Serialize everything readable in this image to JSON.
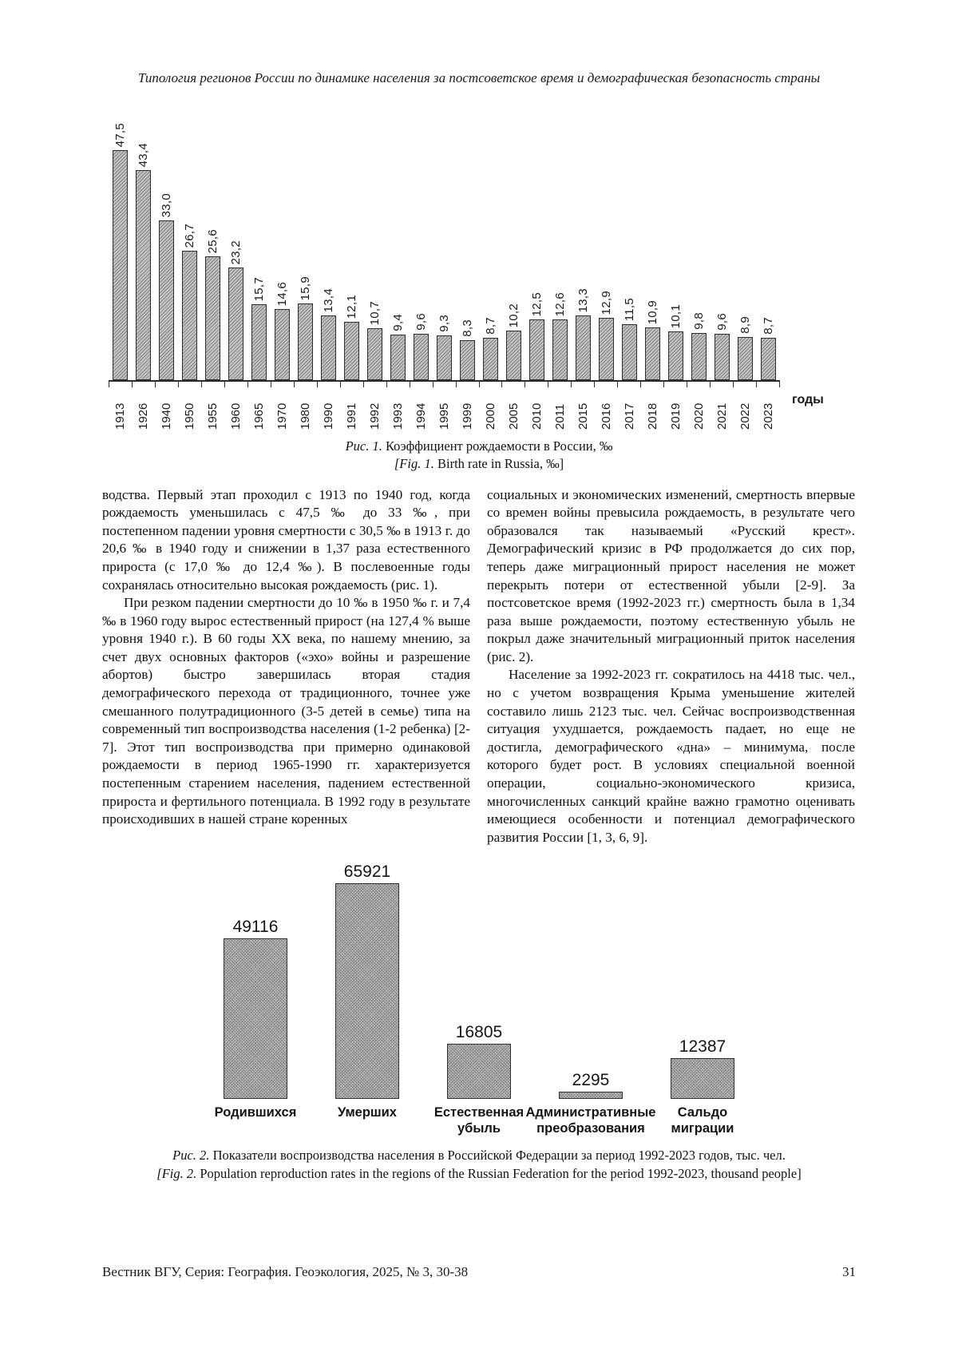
{
  "header": {
    "running_title": "Типология регионов России по динамике населения за постсоветское время и демографическая безопасность страны"
  },
  "chart_data": [
    {
      "type": "bar",
      "title": "Коэффициент рождаемости в России, ‰",
      "categories": [
        "1913",
        "1926",
        "1940",
        "1950",
        "1955",
        "1960",
        "1965",
        "1970",
        "1980",
        "1990",
        "1991",
        "1992",
        "1993",
        "1994",
        "1995",
        "1999",
        "2000",
        "2005",
        "2010",
        "2011",
        "2015",
        "2016",
        "2017",
        "2018",
        "2019",
        "2020",
        "2021",
        "2022",
        "2023"
      ],
      "values": [
        47.5,
        43.4,
        33.0,
        26.7,
        25.6,
        23.2,
        15.7,
        14.6,
        15.9,
        13.4,
        12.1,
        10.7,
        9.4,
        9.6,
        9.3,
        8.3,
        8.7,
        10.2,
        12.5,
        12.6,
        13.3,
        12.9,
        11.5,
        10.9,
        10.1,
        9.8,
        9.6,
        8.9,
        8.7
      ],
      "value_labels": [
        "47,5",
        "43,4",
        "33,0",
        "26,7",
        "25,6",
        "23,2",
        "15,7",
        "14,6",
        "15,9",
        "13,4",
        "12,1",
        "10,7",
        "9,4",
        "9,6",
        "9,3",
        "8,3",
        "8,7",
        "10,2",
        "12,5",
        "12,6",
        "13,3",
        "12,9",
        "11,5",
        "10,9",
        "10,1",
        "9,8",
        "9,6",
        "8,9",
        "8,7"
      ],
      "xlabel": "годы",
      "ylabel": "",
      "ylim": [
        0,
        50
      ],
      "grid": false,
      "legend_position": "none",
      "bar_label_rotation": 90,
      "tick_label_rotation": 90
    },
    {
      "type": "bar",
      "title": "Показатели воспроизводства населения в Российской Федерации за период 1992-2023 годов, тыс. чел.",
      "categories": [
        "Родившихся",
        "Умерших",
        "Естественная убыль",
        "Административные преобразования",
        "Сальдо миграции"
      ],
      "values": [
        49116,
        65921,
        16805,
        2295,
        12387
      ],
      "value_labels": [
        "49116",
        "65921",
        "16805",
        "2295",
        "12387"
      ],
      "xlabel": "",
      "ylabel": "",
      "ylim": [
        0,
        70000
      ],
      "grid": false,
      "legend_position": "none"
    }
  ],
  "fig1": {
    "ru_prefix": "Рис. 1.",
    "ru_text": " Коэффициент рождаемости в России, ‰",
    "en_prefix": "[Fig. 1.",
    "en_text": " Birth rate in Russia, ‰]"
  },
  "fig2": {
    "ru_prefix": "Рис. 2.",
    "ru_text": " Показатели воспроизводства населения в Российской Федерации за период 1992-2023 годов, тыс. чел.",
    "en_prefix": "[Fig. 2.",
    "en_text": " Population reproduction rates in the regions of the Russian Federation for the period 1992-2023, thousand people]"
  },
  "body": {
    "left": [
      "водства. Первый этап проходил с 1913 по 1940 год, когда рождаемость уменьшилась с 47,5 ‰ до 33 ‰, при постепенном падении уровня смертности с 30,5 ‰ в 1913 г. до 20,6 ‰ в 1940 году и снижении в 1,37 раза естественного прироста (с 17,0 ‰ до 12,4 ‰). В послевоенные годы сохранялась относительно высокая рождаемость (рис. 1).",
      "При резком падении смертности до 10 ‰ в 1950 ‰ г. и 7,4 ‰ в 1960 году вырос естественный прирост (на 127,4 % выше уровня 1940 г.). В 60 годы ХХ века, по нашему мнению, за счет двух основных факторов («эхо» войны и разрешение абортов) быстро завершилась вторая стадия демографического перехода от традиционного, точнее уже смешанного полутрадиционного (3-5 детей в семье) типа на современный тип воспроизводства населения (1-2 ребенка) [2-7]. Этот тип воспроизводства при примерно одинаковой рождаемости в период 1965-1990 гг. характеризуется постепенным старением населения, падением естественной прироста и фертильного потенциала. В 1992 году в результате происходивших в нашей стране коренных"
    ],
    "right": [
      "социальных и экономических изменений, смертность впервые со времен войны превысила рождаемость, в результате чего образовался так называемый «Русский крест». Демографический кризис в РФ продолжается до сих пор, теперь даже миграционный прирост населения не может перекрыть потери от естественной убыли [2-9]. За постсоветское время (1992-2023 гг.) смертность была в 1,34 раза выше рождаемости, поэтому естественную убыль не покрыл даже значительный миграционный приток населения (рис. 2).",
      "Население за 1992-2023 гг. сократилось на 4418 тыс. чел., но с учетом возвращения Крыма уменьшение жителей составило лишь 2123 тыс. чел. Сейчас воспроизводственная ситуация ухудшается, рождаемость падает, но еще не достигла, демографического «дна» – минимума, после которого будет рост. В условиях специальной военной операции, социально-экономического кризиса, многочисленных санкций крайне важно грамотно оценивать имеющиеся особенности и потенциал демографического развития России [1, 3, 6, 9]."
    ]
  },
  "footer": {
    "journal": "Вестник ВГУ, Серия: География. Геоэкология, 2025, № 3, 30-38",
    "page": "31"
  }
}
